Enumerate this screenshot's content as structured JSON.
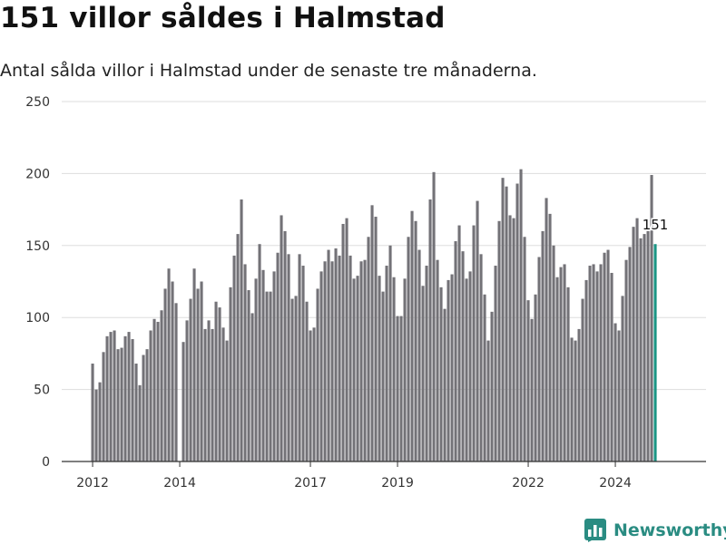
{
  "title": "151 villor såldes i Halmstad",
  "subtitle": "Antal sålda villor i Halmstad under de senaste tre månaderna.",
  "brand": {
    "name": "Newsworthy",
    "icon": "newsworthy-logo-icon",
    "color": "#2a8c82"
  },
  "colors": {
    "bars": "#737277",
    "highlight": "#1a9484",
    "grid": "#dddddd"
  },
  "chart_data": {
    "type": "bar",
    "title": "",
    "xlabel": "",
    "ylabel": "",
    "ylim": [
      0,
      250
    ],
    "yticks": [
      0,
      50,
      100,
      150,
      200,
      250
    ],
    "xticks": [
      {
        "label": "2012",
        "index": 0
      },
      {
        "label": "2014",
        "index": 24
      },
      {
        "label": "2017",
        "index": 60
      },
      {
        "label": "2019",
        "index": 84
      },
      {
        "label": "2022",
        "index": 120
      },
      {
        "label": "2024",
        "index": 144
      }
    ],
    "grid": true,
    "start": "2012-01",
    "frequency": "monthly",
    "values": [
      68,
      50,
      55,
      76,
      87,
      90,
      91,
      78,
      79,
      87,
      90,
      85,
      68,
      53,
      74,
      78,
      91,
      99,
      97,
      105,
      120,
      134,
      125,
      110,
      0,
      83,
      98,
      113,
      134,
      120,
      125,
      92,
      98,
      92,
      111,
      107,
      93,
      84,
      121,
      143,
      158,
      182,
      137,
      119,
      103,
      127,
      151,
      133,
      118,
      118,
      132,
      145,
      171,
      160,
      144,
      113,
      115,
      144,
      136,
      111,
      91,
      93,
      120,
      132,
      139,
      147,
      139,
      148,
      143,
      165,
      169,
      143,
      127,
      129,
      139,
      140,
      156,
      178,
      170,
      129,
      118,
      136,
      150,
      128,
      101,
      101,
      127,
      156,
      174,
      167,
      147,
      122,
      136,
      182,
      201,
      140,
      121,
      106,
      126,
      130,
      153,
      164,
      146,
      127,
      132,
      164,
      181,
      144,
      116,
      84,
      104,
      136,
      167,
      197,
      191,
      171,
      169,
      193,
      203,
      156,
      112,
      99,
      116,
      142,
      160,
      183,
      172,
      150,
      128,
      135,
      137,
      121,
      86,
      84,
      92,
      113,
      126,
      136,
      137,
      132,
      137,
      145,
      147,
      131,
      96,
      91,
      115,
      140,
      149,
      163,
      169,
      155,
      158,
      160,
      199,
      151
    ],
    "highlight_index": 155,
    "annotations": [
      {
        "index": 155,
        "text": "151"
      }
    ]
  }
}
